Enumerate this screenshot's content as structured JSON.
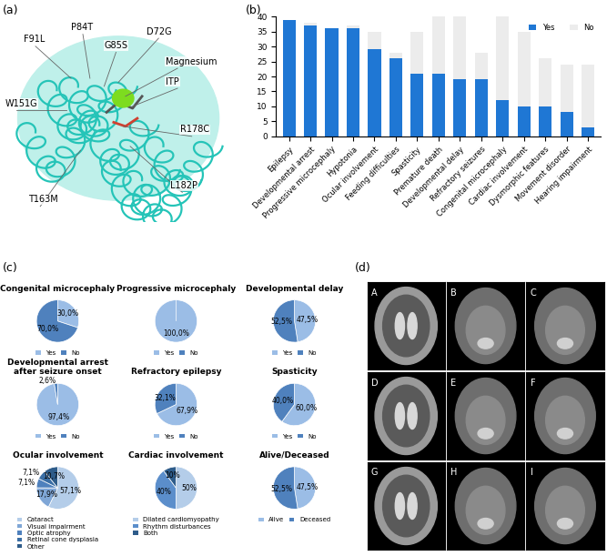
{
  "chart_data": [
    {
      "type": "bar",
      "panel_label": "(b)",
      "categories": [
        "Epilepsy",
        "Developmental arrest",
        "Progressive microcephaly",
        "Hypotonia",
        "Ocular involvement",
        "Feeding difficulties",
        "Spasticity",
        "Premature death",
        "Developmental delay",
        "Refractory seizures",
        "Congenital microcephaly",
        "Cardiac involvement",
        "Dysmorphic features",
        "Movement disorder",
        "Hearing impairment"
      ],
      "series": [
        {
          "name": "Yes",
          "color": "#1f77d4",
          "values": [
            39,
            37,
            36,
            36,
            29,
            26,
            21,
            21,
            19,
            19,
            12,
            10,
            10,
            8,
            3
          ]
        },
        {
          "name": "No",
          "color": "#ececec",
          "values": [
            0,
            1,
            0,
            1,
            6,
            2,
            14,
            19,
            21,
            9,
            28,
            25,
            16,
            16,
            21
          ]
        }
      ],
      "stacked": true,
      "ylim": [
        0,
        40
      ],
      "yticks": [
        0,
        5,
        10,
        15,
        20,
        25,
        30,
        35,
        40
      ],
      "legend": "upper right",
      "grid": false
    },
    {
      "type": "pie",
      "title": "Congenital microcephaly",
      "categories": [
        "Yes",
        "No"
      ],
      "values": [
        30.0,
        70.0
      ],
      "value_labels": [
        "30,0%",
        "70,0%"
      ],
      "colors": [
        "#9bbde6",
        "#4f81bd"
      ],
      "legend": "below"
    },
    {
      "type": "pie",
      "title": "Progressive microcephaly",
      "categories": [
        "Yes",
        "No"
      ],
      "values": [
        100.0,
        0.0
      ],
      "value_labels": [
        "100,0%",
        null
      ],
      "colors": [
        "#9bbde6",
        "#4f81bd"
      ],
      "legend": "below"
    },
    {
      "type": "pie",
      "title": "Developmental delay",
      "categories": [
        "Yes",
        "No"
      ],
      "values": [
        47.5,
        52.5
      ],
      "value_labels": [
        "47,5%",
        "52,5%"
      ],
      "colors": [
        "#9bbde6",
        "#4f81bd"
      ],
      "legend": "below"
    },
    {
      "type": "pie",
      "title": "Developmental arrest\nafter seizure onset",
      "categories": [
        "Yes",
        "No"
      ],
      "values": [
        97.4,
        2.6
      ],
      "value_labels": [
        "97,4%",
        "2,6%"
      ],
      "colors": [
        "#9bbde6",
        "#4f81bd"
      ],
      "legend": "below"
    },
    {
      "type": "pie",
      "title": "Refractory epilepsy",
      "categories": [
        "Yes",
        "No"
      ],
      "values": [
        67.9,
        32.1
      ],
      "value_labels": [
        "67,9%",
        "32,1%"
      ],
      "colors": [
        "#9bbde6",
        "#4f81bd"
      ],
      "legend": "below"
    },
    {
      "type": "pie",
      "title": "Spasticity",
      "categories": [
        "Yes",
        "No"
      ],
      "values": [
        60.0,
        40.0
      ],
      "value_labels": [
        "60,0%",
        "40,0%"
      ],
      "colors": [
        "#9bbde6",
        "#4f81bd"
      ],
      "legend": "below"
    },
    {
      "type": "pie",
      "title": "Ocular involvement",
      "categories": [
        "Cataract",
        "Visual impairment",
        "Optic atrophy",
        "Retinal cone dysplasia",
        "Other"
      ],
      "values": [
        57.1,
        17.9,
        7.1,
        7.1,
        10.7
      ],
      "value_labels": [
        "57,1%",
        "17,9%",
        "7,1%",
        "7,1%",
        "10,7%"
      ],
      "colors": [
        "#b4cde9",
        "#7fa6d6",
        "#4f81bd",
        "#3a6ea5",
        "#2e5c8a"
      ],
      "legend": "below"
    },
    {
      "type": "pie",
      "title": "Cardiac involvement",
      "categories": [
        "Dilated cardiomyopathy",
        "Rhythm disturbances",
        "Both"
      ],
      "values": [
        50,
        40,
        10
      ],
      "value_labels": [
        "50%",
        "40%",
        "10%"
      ],
      "colors": [
        "#b4cde9",
        "#5b8ecb",
        "#2e5c8a"
      ],
      "legend": "below"
    },
    {
      "type": "pie",
      "title": "Alive/Deceased",
      "categories": [
        "Alive",
        "Deceased"
      ],
      "values": [
        47.5,
        52.5
      ],
      "value_labels": [
        "47,5%",
        "52,5%"
      ],
      "colors": [
        "#9bbde6",
        "#4f81bd"
      ],
      "legend": "below"
    }
  ],
  "panel_c": {
    "panel_label": "(c)"
  },
  "structure": {
    "panel_label": "(a)",
    "labels": [
      "F91L",
      "P84T",
      "G85S",
      "D72G",
      "Magnesium",
      "ITP",
      "W151G",
      "R178C",
      "T163M",
      "L182P"
    ]
  },
  "mri": {
    "panel_label": "(d)",
    "labels": [
      "A",
      "B",
      "C",
      "D",
      "E",
      "F",
      "G",
      "H",
      "I"
    ]
  }
}
